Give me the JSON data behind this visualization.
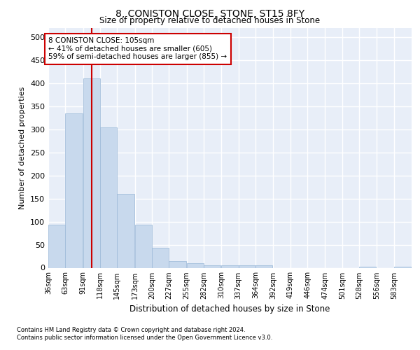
{
  "title": "8, CONISTON CLOSE, STONE, ST15 8FY",
  "subtitle": "Size of property relative to detached houses in Stone",
  "xlabel": "Distribution of detached houses by size in Stone",
  "ylabel": "Number of detached properties",
  "footnote1": "Contains HM Land Registry data © Crown copyright and database right 2024.",
  "footnote2": "Contains public sector information licensed under the Open Government Licence v3.0.",
  "annotation_line1": "8 CONISTON CLOSE: 105sqm",
  "annotation_line2": "← 41% of detached houses are smaller (605)",
  "annotation_line3": "59% of semi-detached houses are larger (855) →",
  "bar_color": "#c8d9ed",
  "bar_edge_color": "#9ab8d8",
  "vline_color": "#cc0000",
  "vline_x": 105,
  "bins": [
    36,
    63,
    91,
    118,
    145,
    173,
    200,
    227,
    255,
    282,
    310,
    337,
    364,
    392,
    419,
    446,
    474,
    501,
    528,
    556,
    583,
    611
  ],
  "bar_heights": [
    93,
    335,
    410,
    305,
    160,
    93,
    43,
    14,
    10,
    5,
    5,
    5,
    5,
    0,
    0,
    0,
    0,
    0,
    3,
    0,
    3
  ],
  "ylim": [
    0,
    520
  ],
  "yticks": [
    0,
    50,
    100,
    150,
    200,
    250,
    300,
    350,
    400,
    450,
    500
  ],
  "plot_bg_color": "#e8eef8"
}
